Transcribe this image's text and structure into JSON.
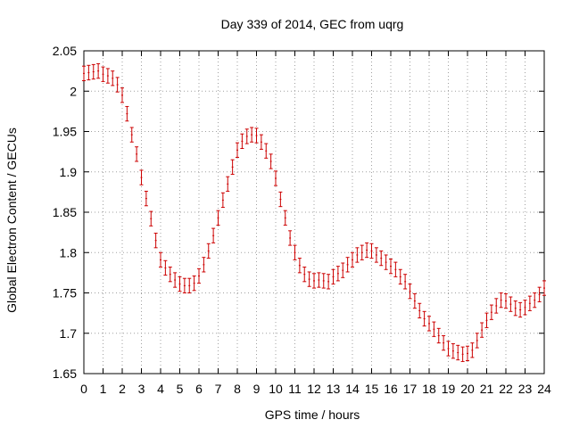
{
  "chart_data": {
    "type": "line",
    "title": "Day 339 of 2014, GEC from uqrg",
    "xlabel": "GPS time / hours",
    "ylabel": "Global Electron Content / GECUs",
    "xlim": [
      0,
      24
    ],
    "ylim": [
      1.65,
      2.05
    ],
    "x_ticks": [
      0,
      1,
      2,
      3,
      4,
      5,
      6,
      7,
      8,
      9,
      10,
      11,
      12,
      13,
      14,
      15,
      16,
      17,
      18,
      19,
      20,
      21,
      22,
      23,
      24
    ],
    "y_ticks": [
      1.65,
      1.7,
      1.75,
      1.8,
      1.85,
      1.9,
      1.95,
      2,
      2.05
    ],
    "y_tick_labels": [
      "1.65",
      "1.7",
      "1.75",
      "1.8",
      "1.85",
      "1.9",
      "1.95",
      "2",
      "2.05"
    ],
    "grid": true,
    "color": "#cc0000",
    "error": 0.009,
    "series": [
      {
        "x": [
          0,
          0.25,
          0.5,
          0.75,
          1,
          1.25,
          1.5,
          1.75,
          2,
          2.25,
          2.5,
          2.75,
          3,
          3.25,
          3.5,
          3.75,
          4,
          4.25,
          4.5,
          4.75,
          5,
          5.25,
          5.5,
          5.75,
          6,
          6.25,
          6.5,
          6.75,
          7,
          7.25,
          7.5,
          7.75,
          8,
          8.25,
          8.5,
          8.75,
          9,
          9.25,
          9.5,
          9.75,
          10,
          10.25,
          10.5,
          10.75,
          11,
          11.25,
          11.5,
          11.75,
          12,
          12.25,
          12.5,
          12.75,
          13,
          13.25,
          13.5,
          13.75,
          14,
          14.25,
          14.5,
          14.75,
          15,
          15.25,
          15.5,
          15.75,
          16,
          16.25,
          16.5,
          16.75,
          17,
          17.25,
          17.5,
          17.75,
          18,
          18.25,
          18.5,
          18.75,
          19,
          19.25,
          19.5,
          19.75,
          20,
          20.25,
          20.5,
          20.75,
          21,
          21.25,
          21.5,
          21.75,
          22,
          22.25,
          22.5,
          22.75,
          23,
          23.25,
          23.5,
          23.75,
          24
        ],
        "y": [
          2.022,
          2.023,
          2.024,
          2.025,
          2.021,
          2.019,
          2.016,
          2.008,
          1.995,
          1.972,
          1.946,
          1.922,
          1.893,
          1.867,
          1.842,
          1.815,
          1.791,
          1.781,
          1.773,
          1.766,
          1.761,
          1.759,
          1.759,
          1.762,
          1.771,
          1.785,
          1.802,
          1.821,
          1.843,
          1.865,
          1.885,
          1.906,
          1.927,
          1.938,
          1.944,
          1.946,
          1.945,
          1.937,
          1.926,
          1.913,
          1.892,
          1.866,
          1.843,
          1.818,
          1.8,
          1.784,
          1.773,
          1.767,
          1.765,
          1.766,
          1.765,
          1.764,
          1.77,
          1.774,
          1.778,
          1.785,
          1.791,
          1.797,
          1.8,
          1.803,
          1.802,
          1.797,
          1.793,
          1.788,
          1.783,
          1.779,
          1.77,
          1.764,
          1.752,
          1.74,
          1.728,
          1.718,
          1.712,
          1.705,
          1.697,
          1.688,
          1.681,
          1.678,
          1.676,
          1.674,
          1.675,
          1.679,
          1.691,
          1.704,
          1.716,
          1.726,
          1.734,
          1.741,
          1.74,
          1.736,
          1.731,
          1.729,
          1.732,
          1.737,
          1.741,
          1.748,
          1.756
        ]
      }
    ]
  }
}
